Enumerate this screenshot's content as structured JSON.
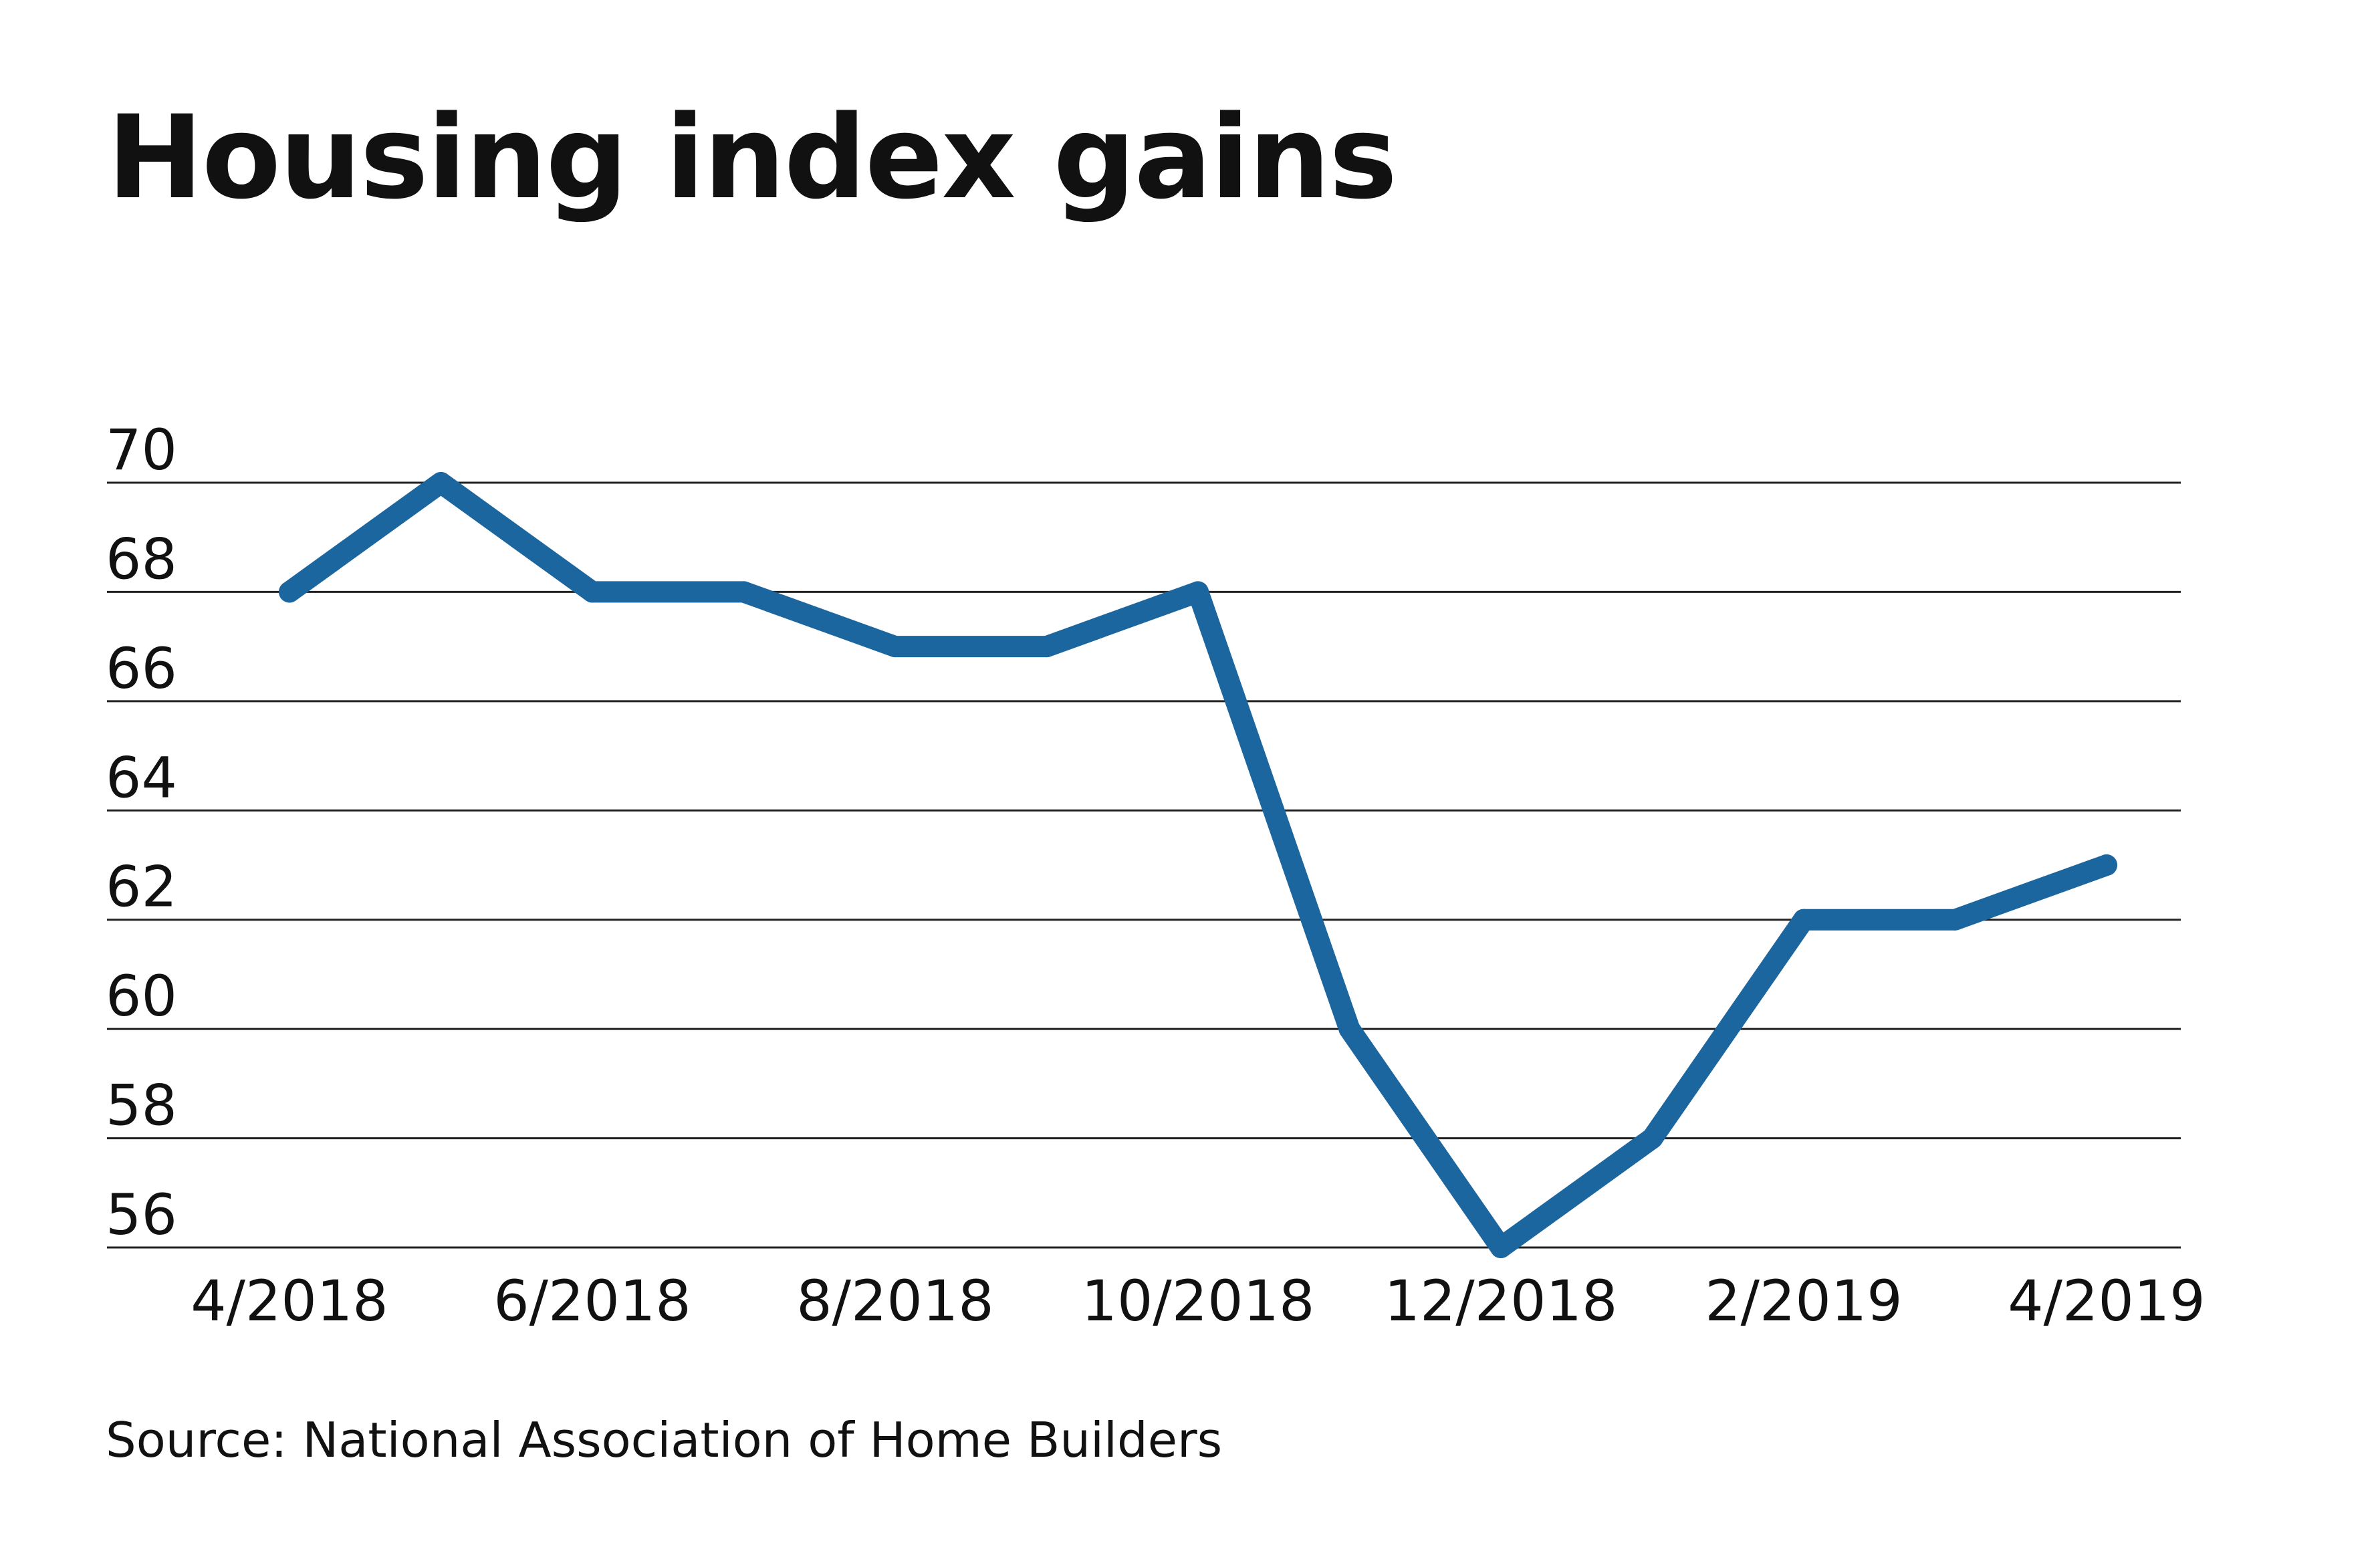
{
  "chart_data": {
    "type": "line",
    "title": "Housing index gains",
    "source": "Source: National Association of Home Builders",
    "x": [
      "4/2018",
      "5/2018",
      "6/2018",
      "7/2018",
      "8/2018",
      "9/2018",
      "10/2018",
      "11/2018",
      "12/2018",
      "1/2019",
      "2/2019",
      "3/2019",
      "4/2019"
    ],
    "x_tick_labels": [
      "4/2018",
      "6/2018",
      "8/2018",
      "10/2018",
      "12/2018",
      "2/2019",
      "4/2019"
    ],
    "series": [
      {
        "values": [
          68,
          70,
          68,
          68,
          67,
          67,
          68,
          60,
          56,
          58,
          62,
          62,
          63
        ]
      }
    ],
    "y_ticks": [
      56,
      58,
      60,
      62,
      64,
      66,
      68,
      70
    ],
    "ylim": [
      56,
      70
    ],
    "grid": "horizontal",
    "xlabel": "",
    "ylabel": "",
    "line_color": "#1c66a0"
  }
}
